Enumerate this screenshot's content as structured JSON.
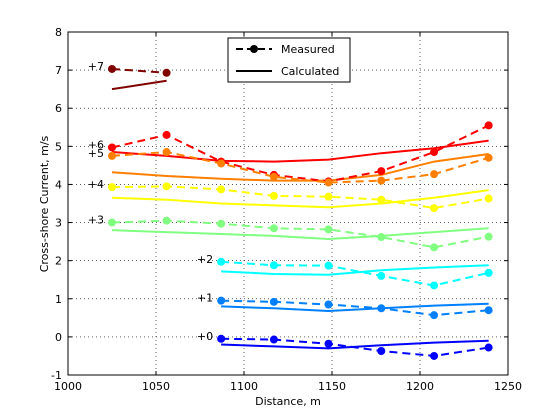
{
  "chart_data": {
    "type": "line",
    "title": "",
    "xlabel": "Distance, m",
    "ylabel": "Cross-shore Current, m/s",
    "xlim": [
      1000,
      1250
    ],
    "ylim": [
      -1,
      8
    ],
    "xticks": [
      1000,
      1050,
      1100,
      1150,
      1200,
      1250
    ],
    "yticks": [
      -1,
      0,
      1,
      2,
      3,
      4,
      5,
      6,
      7,
      8
    ],
    "grid": "dotted",
    "legend": {
      "position": "top-center",
      "entries": [
        {
          "label": "Measured",
          "style": "dashed-with-markers"
        },
        {
          "label": "Calculated",
          "style": "solid"
        }
      ]
    },
    "series": [
      {
        "name": "+7",
        "color": "#800000",
        "measured": {
          "x": [
            1025,
            1056
          ],
          "y": [
            7.03,
            6.93
          ]
        },
        "calculated": {
          "x": [
            1025,
            1056
          ],
          "y": [
            6.5,
            6.72
          ]
        }
      },
      {
        "name": "+6",
        "color": "#ff0000",
        "measured": {
          "x": [
            1025,
            1056,
            1087,
            1117,
            1148,
            1178,
            1208,
            1239
          ],
          "y": [
            4.97,
            5.3,
            4.6,
            4.25,
            4.08,
            4.35,
            4.85,
            5.55
          ]
        },
        "calculated": {
          "x": [
            1025,
            1056,
            1087,
            1117,
            1148,
            1178,
            1208,
            1239
          ],
          "y": [
            4.85,
            4.75,
            4.62,
            4.6,
            4.65,
            4.82,
            4.95,
            5.15
          ]
        }
      },
      {
        "name": "+5",
        "color": "#ff8000",
        "measured": {
          "x": [
            1025,
            1056,
            1087,
            1117,
            1148,
            1178,
            1208,
            1239
          ],
          "y": [
            4.75,
            4.85,
            4.55,
            4.2,
            4.05,
            4.1,
            4.27,
            4.7
          ]
        },
        "calculated": {
          "x": [
            1025,
            1056,
            1087,
            1117,
            1148,
            1178,
            1208,
            1239
          ],
          "y": [
            4.32,
            4.22,
            4.15,
            4.1,
            4.1,
            4.25,
            4.6,
            4.8
          ]
        }
      },
      {
        "name": "+4",
        "color": "#ffff00",
        "measured": {
          "x": [
            1025,
            1056,
            1087,
            1117,
            1148,
            1178,
            1208,
            1239
          ],
          "y": [
            3.93,
            3.95,
            3.87,
            3.7,
            3.68,
            3.6,
            3.38,
            3.63
          ]
        },
        "calculated": {
          "x": [
            1025,
            1056,
            1087,
            1117,
            1148,
            1178,
            1208,
            1239
          ],
          "y": [
            3.65,
            3.6,
            3.5,
            3.45,
            3.4,
            3.5,
            3.65,
            3.85
          ]
        }
      },
      {
        "name": "+3",
        "color": "#80ff80",
        "measured": {
          "x": [
            1025,
            1056,
            1087,
            1117,
            1148,
            1178,
            1208,
            1239
          ],
          "y": [
            3.0,
            3.05,
            2.97,
            2.85,
            2.82,
            2.62,
            2.35,
            2.63
          ]
        },
        "calculated": {
          "x": [
            1025,
            1056,
            1087,
            1117,
            1148,
            1178,
            1208,
            1239
          ],
          "y": [
            2.8,
            2.75,
            2.7,
            2.65,
            2.57,
            2.65,
            2.75,
            2.85
          ]
        }
      },
      {
        "name": "+2",
        "color": "#00ffff",
        "measured": {
          "x": [
            1087,
            1117,
            1148,
            1178,
            1208,
            1239
          ],
          "y": [
            1.97,
            1.88,
            1.87,
            1.6,
            1.35,
            1.68
          ]
        },
        "calculated": {
          "x": [
            1087,
            1117,
            1148,
            1178,
            1208,
            1239
          ],
          "y": [
            1.72,
            1.65,
            1.63,
            1.75,
            1.82,
            1.88
          ]
        }
      },
      {
        "name": "+1",
        "color": "#0080ff",
        "measured": {
          "x": [
            1087,
            1117,
            1148,
            1178,
            1208,
            1239
          ],
          "y": [
            0.95,
            0.92,
            0.85,
            0.75,
            0.57,
            0.7
          ]
        },
        "calculated": {
          "x": [
            1087,
            1117,
            1148,
            1178,
            1208,
            1239
          ],
          "y": [
            0.8,
            0.75,
            0.68,
            0.75,
            0.82,
            0.87
          ]
        }
      },
      {
        "name": "+0",
        "color": "#0000ff",
        "measured": {
          "x": [
            1087,
            1117,
            1148,
            1178,
            1208,
            1239
          ],
          "y": [
            -0.05,
            -0.07,
            -0.18,
            -0.37,
            -0.5,
            -0.28
          ]
        },
        "calculated": {
          "x": [
            1087,
            1117,
            1148,
            1178,
            1208,
            1239
          ],
          "y": [
            -0.2,
            -0.25,
            -0.3,
            -0.22,
            -0.15,
            -0.1
          ]
        }
      }
    ]
  }
}
